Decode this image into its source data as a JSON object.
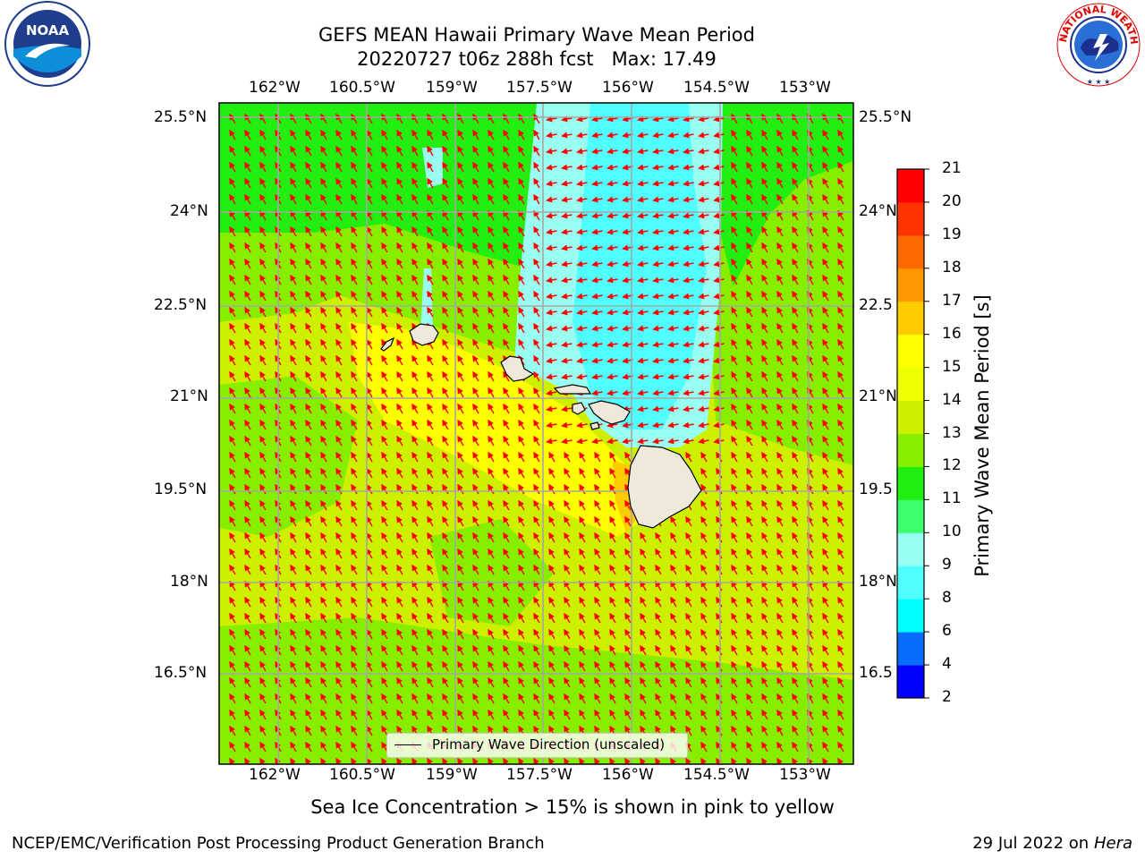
{
  "title_line1": "GEFS MEAN Hawaii Primary Wave Mean Period",
  "title_line2": "20220727 t06z 288h fcst   Max: 17.49",
  "subcaption": "Sea Ice Concentration > 15% is shown in pink to yellow",
  "footer_left": "NCEP/EMC/Verification Post Processing Product Generation Branch",
  "footer_right_date": "29 Jul 2022 on ",
  "footer_right_system": "Hera",
  "legend_label": "Primary Wave Direction (unscaled)",
  "colorbar": {
    "label": "Primary Wave Mean Period [s]",
    "ticks": [
      "2",
      "4",
      "6",
      "8",
      "9",
      "10",
      "11",
      "12",
      "13",
      "14",
      "15",
      "16",
      "17",
      "18",
      "19",
      "20",
      "21"
    ],
    "colors": [
      "#0000ff",
      "#0a6cff",
      "#00ffff",
      "#50ffff",
      "#99fff0",
      "#3cff6e",
      "#22ee11",
      "#88ee00",
      "#ccf000",
      "#eeff00",
      "#ffff00",
      "#ffcc00",
      "#ff9900",
      "#ff6a00",
      "#ff3300",
      "#ff0000"
    ]
  },
  "map": {
    "lon_labels": [
      "162°W",
      "160.5°W",
      "159°W",
      "157.5°W",
      "156°W",
      "154.5°W",
      "153°W"
    ],
    "lat_labels_left": [
      "25.5°N",
      "24°N",
      "22.5°N",
      "21°N",
      "19.5°N",
      "18°N",
      "16.5°N"
    ],
    "lat_labels_right": [
      "25.5°N",
      "24°N",
      "22.5",
      "21°N",
      "19.5",
      "18°N",
      "16.5"
    ],
    "lon_range": [
      -163,
      -152.7
    ],
    "lat_range": [
      14.9,
      25.8
    ],
    "max_period": 17.49,
    "arrow_color": "#ff0000",
    "land_color": "#efe9dc",
    "grid_color": "#a6a6a6"
  },
  "logos": {
    "noaa_text": "NOAA",
    "nws_text": "NATIONAL WEATHER SERVICE"
  }
}
